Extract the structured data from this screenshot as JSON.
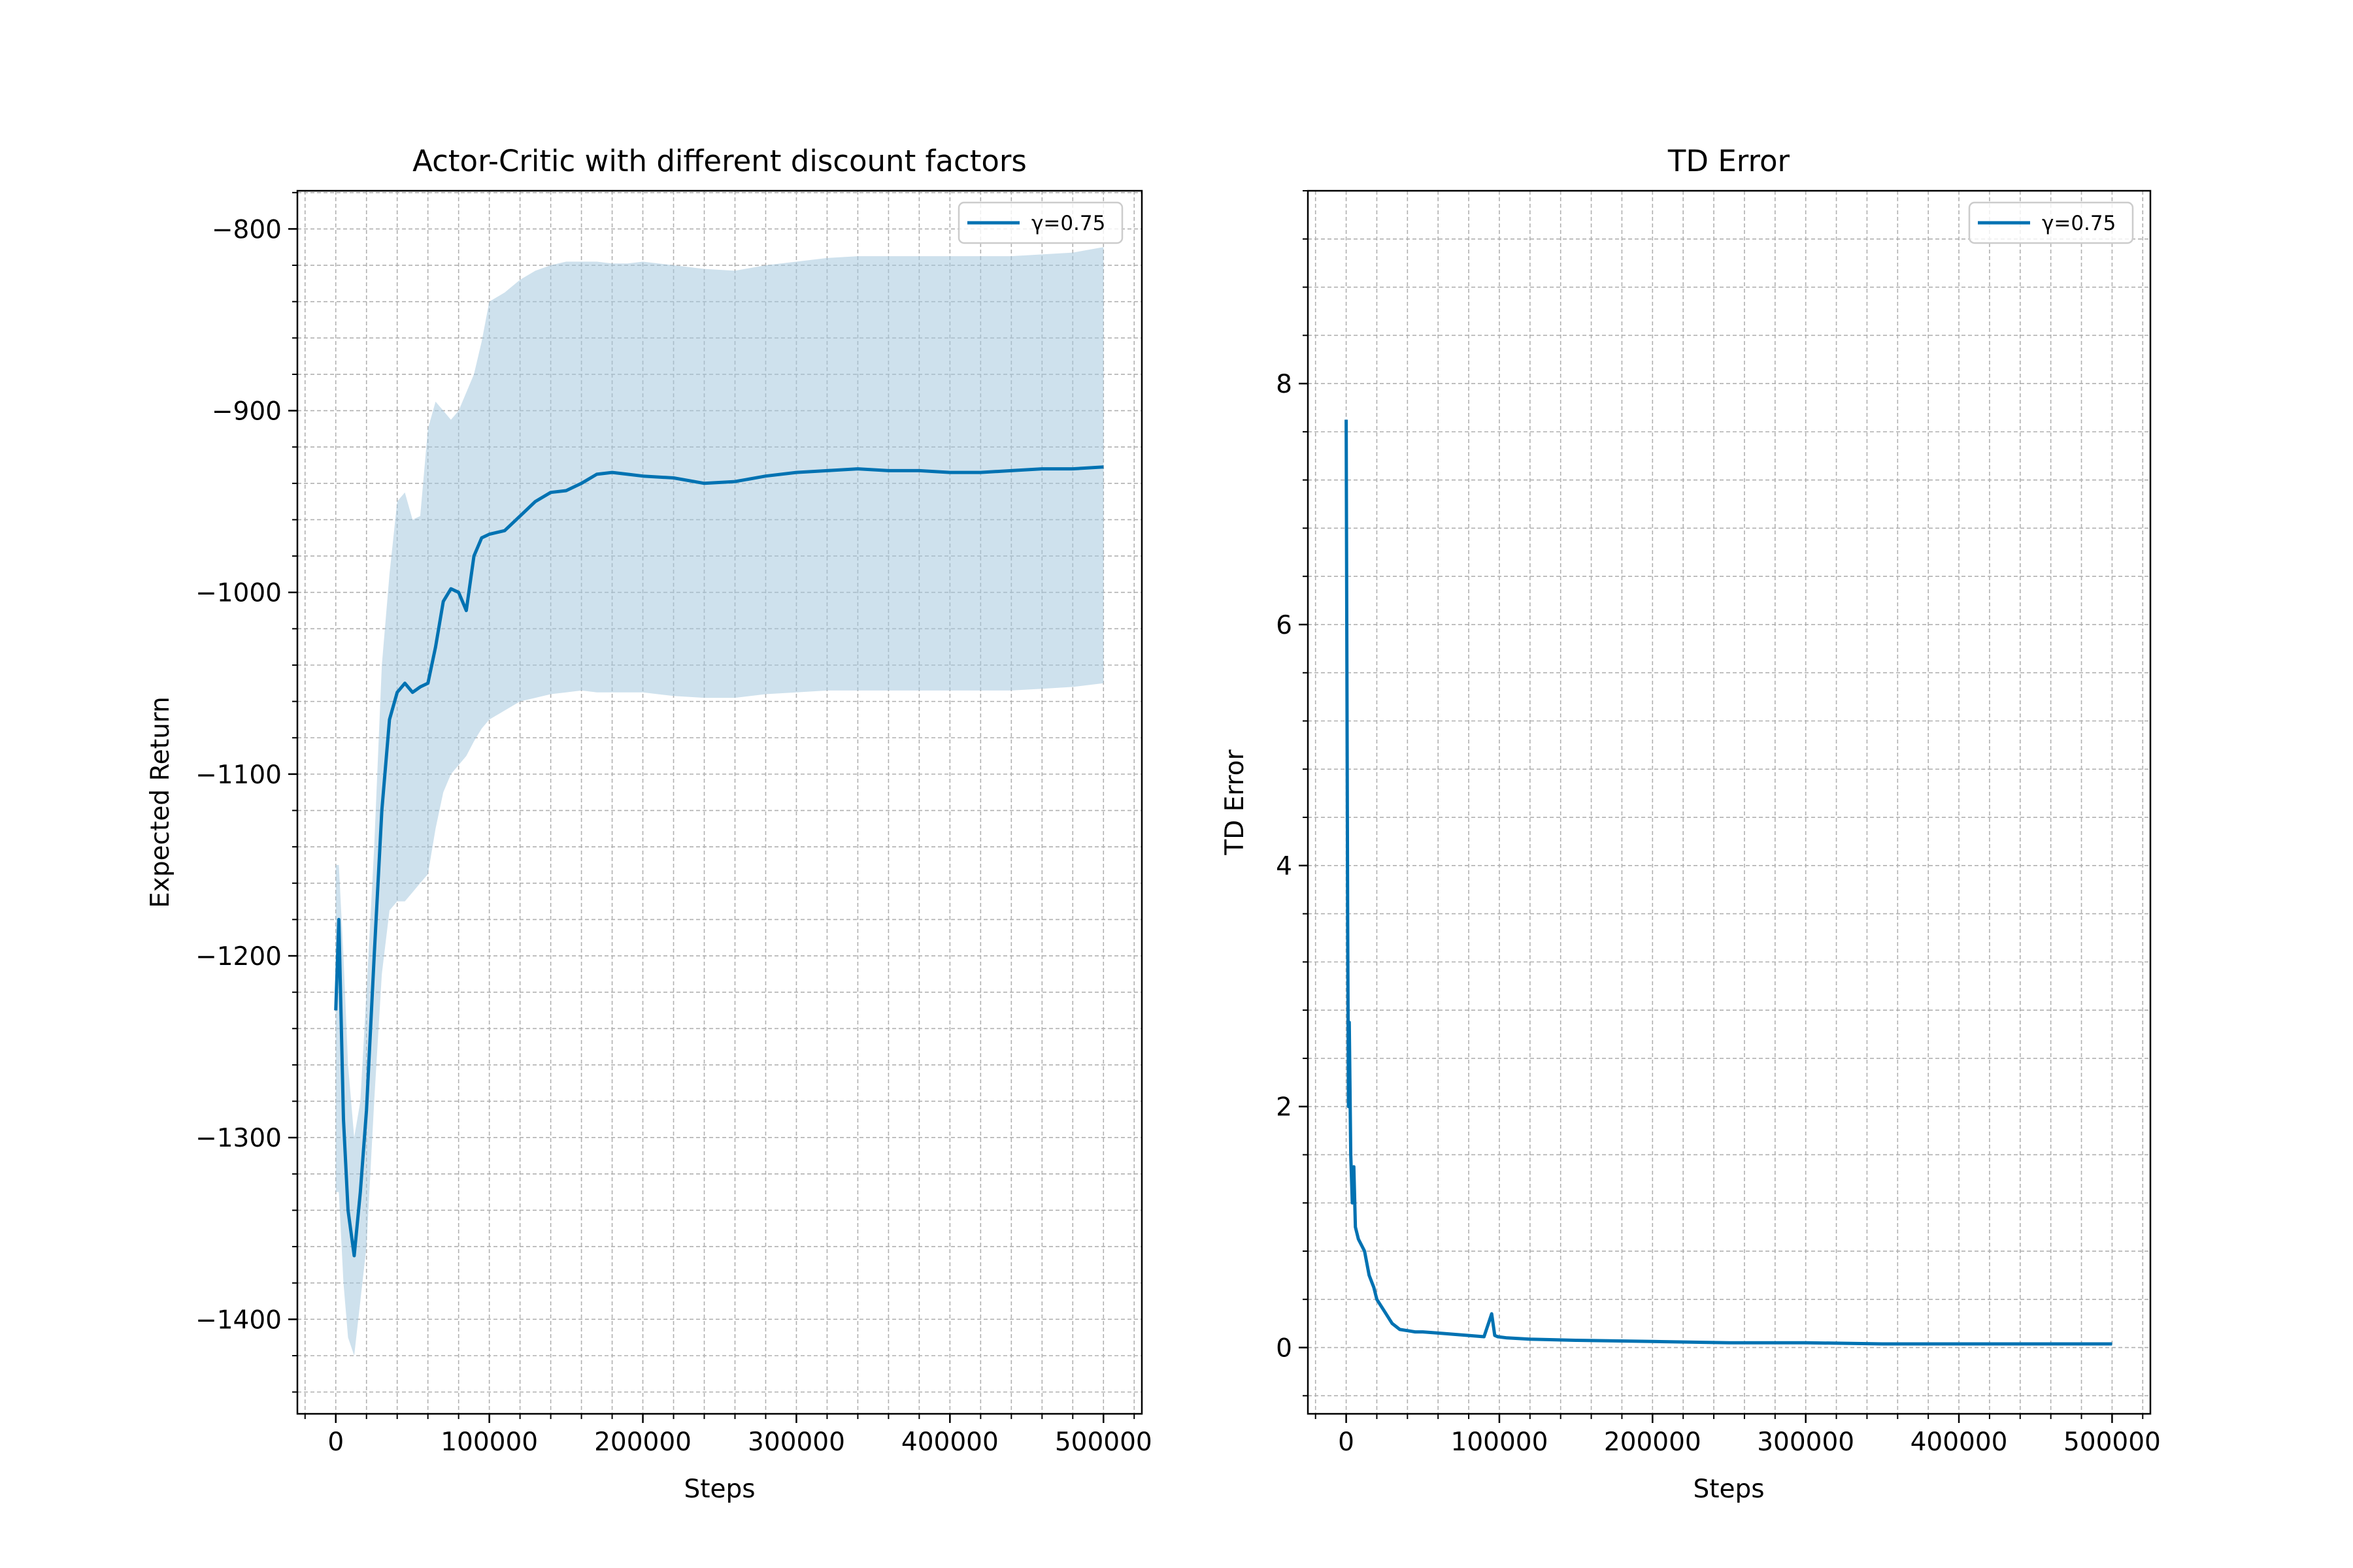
{
  "chart_data": [
    {
      "type": "line",
      "title": "Actor-Critic with different discount factors",
      "xlabel": "Steps",
      "ylabel": "Expected Return",
      "xlim": [
        -25000,
        525000
      ],
      "ylim": [
        -1452,
        -779
      ],
      "x_ticks": [
        0,
        100000,
        200000,
        300000,
        400000,
        500000
      ],
      "x_tick_labels": [
        "0",
        "100000",
        "200000",
        "300000",
        "400000",
        "500000"
      ],
      "y_ticks": [
        -1400,
        -1300,
        -1200,
        -1100,
        -1000,
        -900,
        -800
      ],
      "y_tick_labels": [
        "−1400",
        "−1300",
        "−1200",
        "−1100",
        "−1000",
        "−900",
        "−800"
      ],
      "grid": true,
      "legend_position": "upper right",
      "series": [
        {
          "name": "γ=0.75",
          "color": "#0072b2",
          "band_color": "#a6c8de",
          "x": [
            0,
            2000,
            5000,
            8000,
            12000,
            16000,
            20000,
            25000,
            30000,
            35000,
            40000,
            45000,
            50000,
            55000,
            60000,
            65000,
            70000,
            75000,
            80000,
            85000,
            90000,
            95000,
            100000,
            110000,
            120000,
            130000,
            140000,
            150000,
            160000,
            170000,
            180000,
            190000,
            200000,
            220000,
            240000,
            260000,
            280000,
            300000,
            320000,
            340000,
            360000,
            380000,
            400000,
            420000,
            440000,
            460000,
            480000,
            500000
          ],
          "y": [
            -1230,
            -1180,
            -1290,
            -1340,
            -1365,
            -1330,
            -1285,
            -1200,
            -1120,
            -1070,
            -1055,
            -1050,
            -1055,
            -1052,
            -1050,
            -1030,
            -1005,
            -998,
            -1000,
            -1010,
            -980,
            -970,
            -968,
            -966,
            -958,
            -950,
            -945,
            -944,
            -940,
            -935,
            -934,
            -935,
            -936,
            -937,
            -940,
            -939,
            -936,
            -934,
            -933,
            -932,
            -933,
            -933,
            -934,
            -934,
            -933,
            -932,
            -932,
            -931
          ],
          "upper": [
            -1150,
            -1150,
            -1200,
            -1260,
            -1300,
            -1280,
            -1220,
            -1140,
            -1040,
            -990,
            -950,
            -945,
            -960,
            -958,
            -910,
            -895,
            -900,
            -905,
            -900,
            -890,
            -880,
            -862,
            -840,
            -835,
            -828,
            -823,
            -820,
            -818,
            -818,
            -818,
            -819,
            -819,
            -818,
            -820,
            -822,
            -823,
            -820,
            -818,
            -816,
            -815,
            -815,
            -815,
            -815,
            -815,
            -815,
            -814,
            -813,
            -810
          ],
          "lower": [
            -1330,
            -1330,
            -1380,
            -1410,
            -1420,
            -1390,
            -1360,
            -1280,
            -1210,
            -1175,
            -1170,
            -1170,
            -1165,
            -1160,
            -1155,
            -1130,
            -1110,
            -1100,
            -1095,
            -1090,
            -1082,
            -1075,
            -1070,
            -1065,
            -1060,
            -1058,
            -1056,
            -1055,
            -1054,
            -1055,
            -1055,
            -1055,
            -1055,
            -1057,
            -1058,
            -1058,
            -1056,
            -1055,
            -1054,
            -1054,
            -1054,
            -1054,
            -1054,
            -1054,
            -1054,
            -1053,
            -1052,
            -1050
          ]
        }
      ]
    },
    {
      "type": "line",
      "title": "TD Error",
      "xlabel": "Steps",
      "ylabel": "TD Error",
      "xlim": [
        -25000,
        525000
      ],
      "ylim": [
        -0.55,
        9.6
      ],
      "x_ticks": [
        0,
        100000,
        200000,
        300000,
        400000,
        500000
      ],
      "x_tick_labels": [
        "0",
        "100000",
        "200000",
        "300000",
        "400000",
        "500000"
      ],
      "y_ticks": [
        0,
        2,
        4,
        6,
        8
      ],
      "y_tick_labels": [
        "0",
        "2",
        "4",
        "6",
        "8"
      ],
      "grid": true,
      "legend_position": "upper right",
      "series": [
        {
          "name": "γ=0.75",
          "color": "#0072b2",
          "x": [
            0,
            500,
            1000,
            1500,
            2000,
            3000,
            4000,
            5000,
            6000,
            8000,
            10000,
            12000,
            15000,
            18000,
            20000,
            25000,
            30000,
            35000,
            40000,
            45000,
            50000,
            60000,
            70000,
            80000,
            90000,
            95000,
            97000,
            99000,
            105000,
            120000,
            150000,
            200000,
            250000,
            300000,
            350000,
            400000,
            450000,
            500000
          ],
          "y": [
            7.7,
            5.5,
            3.5,
            2.0,
            2.7,
            1.6,
            1.2,
            1.5,
            1.0,
            0.9,
            0.85,
            0.8,
            0.6,
            0.5,
            0.4,
            0.3,
            0.2,
            0.15,
            0.14,
            0.13,
            0.13,
            0.12,
            0.11,
            0.1,
            0.09,
            0.28,
            0.1,
            0.09,
            0.08,
            0.07,
            0.06,
            0.05,
            0.04,
            0.04,
            0.03,
            0.03,
            0.03,
            0.03
          ]
        }
      ]
    }
  ]
}
